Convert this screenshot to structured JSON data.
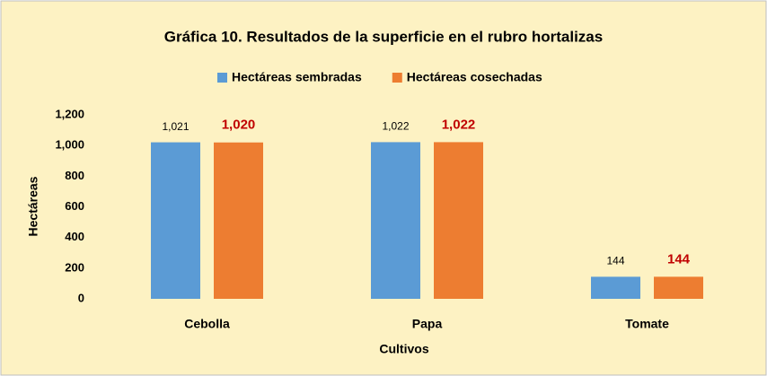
{
  "chart_data": {
    "type": "bar",
    "title": "Gráfica 10. Resultados de la superficie en el rubro hortalizas",
    "x_label": "Cultivos",
    "y_label": "Hectáreas",
    "categories": [
      "Cebolla",
      "Papa",
      "Tomate"
    ],
    "series": [
      {
        "name": "Hectáreas sembradas",
        "color": "#5b9bd5",
        "label_color": "#000000",
        "values": [
          1021,
          1022,
          144
        ],
        "value_labels": [
          "1,021",
          "1,022",
          "144"
        ]
      },
      {
        "name": "Hectáreas cosechadas",
        "color": "#ed7d31",
        "label_color": "#c00000",
        "values": [
          1020,
          1022,
          144
        ],
        "value_labels": [
          "1,020",
          "1,022",
          "144"
        ]
      }
    ],
    "ylim": [
      0,
      1200
    ],
    "yticks": [
      0,
      200,
      400,
      600,
      800,
      {
        "value": 1000,
        "label": "1,000"
      },
      {
        "value": 1200,
        "label": "1,200"
      }
    ],
    "grid": false,
    "legend": "top"
  }
}
